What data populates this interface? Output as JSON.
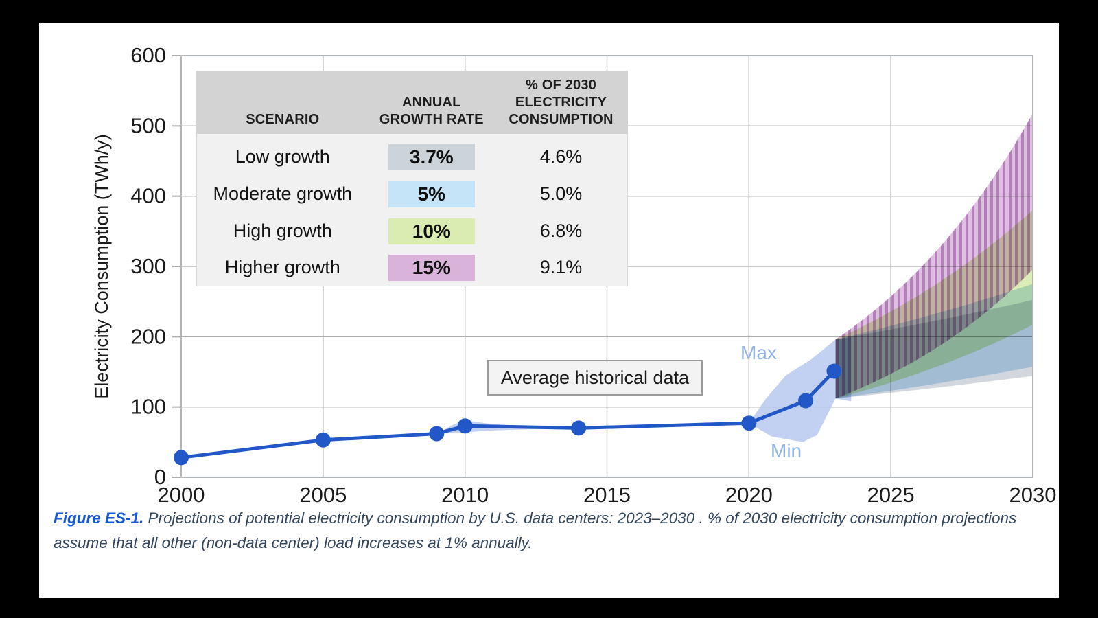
{
  "table": {
    "headers": [
      "SCENARIO",
      "ANNUAL GROWTH RATE",
      "% OF 2030 ELECTRICITY CONSUMPTION"
    ],
    "rows": [
      {
        "scenario": "Low growth",
        "rate": "3.7%",
        "rate_color": "#ccd3d9",
        "pct": "4.6%"
      },
      {
        "scenario": "Moderate growth",
        "rate": "5%",
        "rate_color": "#c6e4f7",
        "pct": "5.0%"
      },
      {
        "scenario": "High growth",
        "rate": "10%",
        "rate_color": "#daecb2",
        "pct": "6.8%"
      },
      {
        "scenario": "Higher growth",
        "rate": "15%",
        "rate_color": "#d9b3da",
        "pct": "9.1%"
      }
    ]
  },
  "annotations": {
    "avg_label": "Average historical data",
    "max_label": "Max",
    "min_label": "Min"
  },
  "caption": {
    "label": "Figure ES-1.",
    "text": " Projections of potential electricity consumption by U.S. data centers: 2023–2030 . % of 2030 electricity consumption projections assume that all other (non-data center) load increases at 1% annually."
  },
  "chart_data": {
    "type": "line",
    "title": "",
    "xlabel": "",
    "ylabel": "Electricity Consumption (TWh/y)",
    "xlim": [
      2000,
      2030
    ],
    "ylim": [
      0,
      600
    ],
    "x_ticks": [
      2000,
      2005,
      2010,
      2015,
      2020,
      2025,
      2030
    ],
    "y_ticks": [
      0,
      100,
      200,
      300,
      400,
      500,
      600
    ],
    "grid": true,
    "colors": {
      "line": "#2157c6",
      "minmax_band": "#b7c9ef",
      "gridline": "#ababab",
      "frame": "#b3b6b9",
      "tick_text": "#1a1a1a"
    },
    "historical": {
      "label": "Average historical data",
      "points": [
        [
          2000,
          28
        ],
        [
          2005,
          53
        ],
        [
          2009,
          62
        ],
        [
          2010,
          73
        ],
        [
          2014,
          70
        ],
        [
          2020,
          77
        ],
        [
          2022,
          109
        ],
        [
          2023,
          151
        ]
      ]
    },
    "band_2010": {
      "max_edge": [
        [
          2009,
          62
        ],
        [
          2009.6,
          75
        ],
        [
          2010,
          81
        ],
        [
          2010.9,
          76
        ],
        [
          2012,
          72.5
        ],
        [
          2013.5,
          70.5
        ],
        [
          2014,
          70
        ]
      ],
      "min_edge": [
        [
          2009,
          62
        ],
        [
          2009.5,
          62.5
        ],
        [
          2010,
          64
        ],
        [
          2011,
          66.5
        ],
        [
          2012,
          68
        ],
        [
          2014,
          70
        ]
      ]
    },
    "minmax_band": {
      "max_label": "Max",
      "min_label": "Min",
      "max_edge": [
        [
          2020,
          77
        ],
        [
          2020.6,
          112
        ],
        [
          2021.3,
          145
        ],
        [
          2022.2,
          168
        ],
        [
          2023.05,
          196
        ],
        [
          2023.6,
          200
        ]
      ],
      "min_edge": [
        [
          2020,
          77
        ],
        [
          2020.8,
          58
        ],
        [
          2021.9,
          50
        ],
        [
          2022.4,
          60
        ],
        [
          2023.05,
          112
        ],
        [
          2023.6,
          108
        ]
      ]
    },
    "projections": {
      "fan_x_start": 2023.05,
      "fan_x_end": 2030,
      "start_min": 112,
      "start_max": 196,
      "growth_years": 6.95,
      "scenarios": [
        {
          "name": "Low growth",
          "annual_growth_rate_pct": 3.7,
          "pct_of_2030_consumption": "4.6%",
          "color": "#cdd3da",
          "hatch": false
        },
        {
          "name": "Moderate growth",
          "annual_growth_rate_pct": 5,
          "pct_of_2030_consumption": "5.0%",
          "color": "#bedbf2",
          "hatch": false
        },
        {
          "name": "High growth",
          "annual_growth_rate_pct": 10,
          "pct_of_2030_consumption": "6.8%",
          "color": "#d7ecae",
          "hatch": false
        },
        {
          "name": "Higher growth",
          "annual_growth_rate_pct": 15,
          "pct_of_2030_consumption": "9.1%",
          "color": "#dcb8de",
          "hatch": true,
          "hatch_color": "#c9a2cd"
        }
      ]
    }
  }
}
